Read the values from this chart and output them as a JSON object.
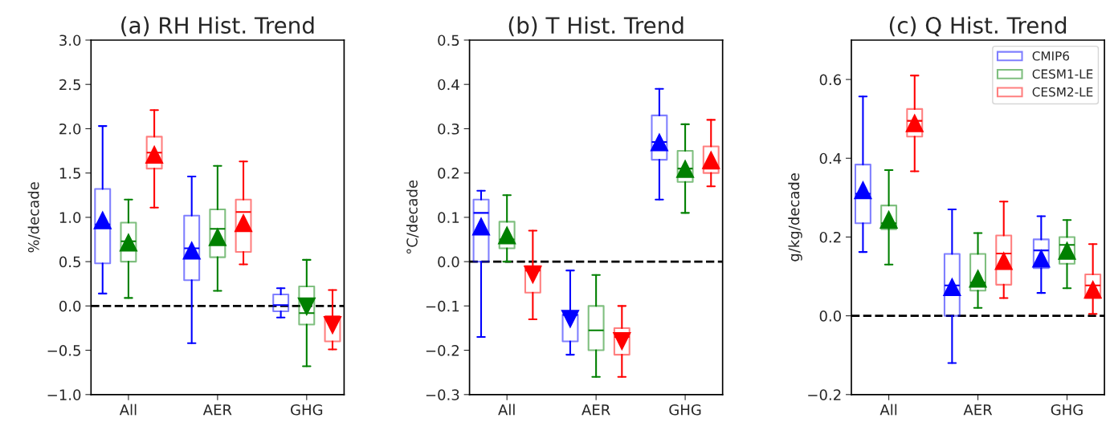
{
  "chart_data": [
    {
      "type": "box",
      "title": "(a) RH Hist. Trend",
      "ylabel": "%/decade",
      "categories": [
        "All",
        "AER",
        "GHG"
      ],
      "ylim": [
        -1.0,
        3.0
      ],
      "yticks": [
        {
          "value": -1.0,
          "label": "−1.0"
        },
        {
          "value": -0.5,
          "label": "−0.5"
        },
        {
          "value": 0,
          "label": "0.0"
        },
        0.5,
        {
          "value": 1,
          "label": "1.0"
        },
        1.5,
        {
          "value": 2,
          "label": "2.0"
        },
        2.5,
        {
          "value": 3,
          "label": "3.0"
        }
      ],
      "marker": "triangle",
      "legend": false,
      "ref_lines": [
        {
          "axis": "y",
          "value": 0,
          "color": "#000000",
          "line_style": "dashed"
        }
      ],
      "series": [
        {
          "color": "#0000ff",
          "boxes": [
            {
              "low": 0.14,
              "q1": 0.48,
              "median": 0.92,
              "q3": 1.32,
              "high": 2.03,
              "mean": 0.97
            },
            {
              "low": -0.42,
              "q1": 0.29,
              "median": 0.65,
              "q3": 1.02,
              "high": 1.46,
              "mean": 0.63
            },
            {
              "low": -0.13,
              "q1": -0.06,
              "median": 0.01,
              "q3": 0.13,
              "high": 0.2
            }
          ]
        },
        {
          "color": "#008000",
          "boxes": [
            {
              "low": 0.09,
              "q1": 0.5,
              "median": 0.73,
              "q3": 0.94,
              "high": 1.2,
              "mean": 0.72
            },
            {
              "low": 0.17,
              "q1": 0.55,
              "median": 0.87,
              "q3": 1.09,
              "high": 1.58,
              "mean": 0.78
            },
            {
              "low": -0.68,
              "q1": -0.21,
              "median": -0.08,
              "q3": 0.22,
              "high": 0.52,
              "mean": -0.01
            }
          ]
        },
        {
          "color": "#ff0000",
          "boxes": [
            {
              "low": 1.11,
              "q1": 1.55,
              "median": 1.73,
              "q3": 1.91,
              "high": 2.21,
              "mean": 1.71
            },
            {
              "low": 0.47,
              "q1": 0.61,
              "median": 1.06,
              "q3": 1.2,
              "high": 1.63,
              "mean": 0.94
            },
            {
              "low": -0.49,
              "q1": -0.4,
              "median": -0.12,
              "q3": -0.12,
              "high": 0.18,
              "mean": -0.22
            }
          ]
        }
      ]
    },
    {
      "type": "box",
      "title": "(b) T Hist. Trend",
      "ylabel": "°C/decade",
      "categories": [
        "All",
        "AER",
        "GHG"
      ],
      "ylim": [
        -0.3,
        0.5
      ],
      "yticks": [
        {
          "value": -0.3,
          "label": "−0.3"
        },
        {
          "value": -0.2,
          "label": "−0.2"
        },
        {
          "value": -0.1,
          "label": "−0.1"
        },
        {
          "value": 0,
          "label": "0.0"
        },
        0.1,
        0.2,
        0.3,
        0.4,
        0.5
      ],
      "marker": "triangle",
      "legend": false,
      "ref_lines": [
        {
          "axis": "y",
          "value": 0,
          "color": "#000000",
          "line_style": "dashed"
        }
      ],
      "series": [
        {
          "color": "#0000ff",
          "boxes": [
            {
              "low": -0.17,
              "q1": 0.0,
              "median": 0.11,
              "q3": 0.14,
              "high": 0.16,
              "mean": 0.08
            },
            {
              "low": -0.21,
              "q1": -0.18,
              "median": -0.12,
              "q3": -0.12,
              "high": -0.02,
              "mean": -0.13
            },
            {
              "low": 0.14,
              "q1": 0.23,
              "median": 0.27,
              "q3": 0.33,
              "high": 0.39,
              "mean": 0.27
            }
          ]
        },
        {
          "color": "#008000",
          "boxes": [
            {
              "low": 0.0,
              "q1": 0.03,
              "median": 0.05,
              "q3": 0.09,
              "high": 0.15,
              "mean": 0.06
            },
            {
              "low": -0.26,
              "q1": -0.2,
              "median": -0.155,
              "q3": -0.1,
              "high": -0.03
            },
            {
              "low": 0.11,
              "q1": 0.18,
              "median": 0.21,
              "q3": 0.25,
              "high": 0.31,
              "mean": 0.21
            }
          ]
        },
        {
          "color": "#ff0000",
          "boxes": [
            {
              "low": -0.13,
              "q1": -0.07,
              "median": -0.02,
              "q3": -0.01,
              "high": 0.07,
              "mean": -0.03
            },
            {
              "low": -0.26,
              "q1": -0.21,
              "median": -0.17,
              "q3": -0.15,
              "high": -0.1,
              "mean": -0.18
            },
            {
              "low": 0.17,
              "q1": 0.2,
              "median": 0.21,
              "q3": 0.26,
              "high": 0.32,
              "mean": 0.23
            }
          ]
        }
      ]
    },
    {
      "type": "box",
      "title": "(c) Q Hist. Trend",
      "ylabel": "g/kg/decade",
      "categories": [
        "All",
        "AER",
        "GHG"
      ],
      "ylim": [
        -0.2,
        0.7
      ],
      "yticks": [
        {
          "value": -0.2,
          "label": "−0.2"
        },
        {
          "value": 0,
          "label": "0.0"
        },
        0.2,
        0.4,
        0.6
      ],
      "marker": "triangle",
      "legend": "top right",
      "ref_lines": [
        {
          "axis": "y",
          "value": 0,
          "color": "#000000",
          "line_style": "dashed"
        }
      ],
      "series": [
        {
          "name": "CMIP6",
          "color": "#0000ff",
          "boxes": [
            {
              "low": 0.162,
              "q1": 0.235,
              "median": 0.31,
              "q3": 0.384,
              "high": 0.557,
              "mean": 0.32
            },
            {
              "low": -0.12,
              "q1": 0.0,
              "median": 0.077,
              "q3": 0.157,
              "high": 0.27,
              "mean": 0.074
            },
            {
              "low": 0.058,
              "q1": 0.121,
              "median": 0.166,
              "q3": 0.194,
              "high": 0.253,
              "mean": 0.146
            }
          ]
        },
        {
          "name": "CESM1-LE",
          "color": "#008000",
          "boxes": [
            {
              "low": 0.13,
              "q1": 0.22,
              "median": 0.235,
              "q3": 0.28,
              "high": 0.37,
              "mean": 0.245
            },
            {
              "low": 0.02,
              "q1": 0.064,
              "median": 0.084,
              "q3": 0.157,
              "high": 0.21,
              "mean": 0.095
            },
            {
              "low": 0.07,
              "q1": 0.132,
              "median": 0.18,
              "q3": 0.2,
              "high": 0.243,
              "mean": 0.166
            }
          ]
        },
        {
          "name": "CESM2-LE",
          "color": "#ff0000",
          "boxes": [
            {
              "low": 0.367,
              "q1": 0.455,
              "median": 0.495,
              "q3": 0.525,
              "high": 0.61,
              "mean": 0.49
            },
            {
              "low": 0.045,
              "q1": 0.079,
              "median": 0.158,
              "q3": 0.204,
              "high": 0.29,
              "mean": 0.14
            },
            {
              "low": 0.005,
              "q1": 0.045,
              "median": 0.077,
              "q3": 0.105,
              "high": 0.182,
              "mean": 0.067
            }
          ]
        }
      ]
    }
  ]
}
